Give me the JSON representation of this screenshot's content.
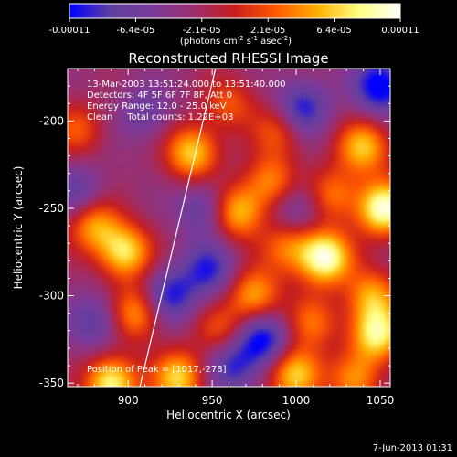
{
  "colorbar": {
    "ticks": [
      "-0.00011",
      "-6.4e-05",
      "-2.1e-05",
      "2.1e-05",
      "6.4e-05",
      "0.00011"
    ],
    "unit_label_parts": [
      "(photons cm",
      "-2",
      " s",
      "-1",
      " asec",
      "-2",
      ")"
    ]
  },
  "chart_data": {
    "type": "heatmap",
    "title": "Reconstructed RHESSI Image",
    "xlabel": "Heliocentric X (arcsec)",
    "ylabel": "Heliocentric Y (arcsec)",
    "xlim": [
      864,
      1056
    ],
    "ylim": [
      -352,
      -170
    ],
    "xticks": [
      900,
      950,
      1000,
      1050
    ],
    "yticks": [
      -200,
      -250,
      -300,
      -350
    ],
    "annotations": [
      "13-Mar-2003 13:51:24.000 to 13:51:40.000",
      "Detectors: 4F 5F 6F 7F 8F, Att 0",
      "Energy Range: 12.0 - 25.0 keV",
      "Clean     Total counts: 1.22E+03"
    ],
    "peak_label": "Position of Peak = [1017,-278]",
    "peak": [
      1017,
      -278
    ],
    "limb_line": [
      [
        907,
        -352
      ],
      [
        952,
        -170
      ]
    ],
    "colormap": [
      "#0000ff",
      "#5f3fa0",
      "#7a3a9a",
      "#9b2f6e",
      "#c81e1e",
      "#ff5a00",
      "#ffb000",
      "#ffff80",
      "#ffffff"
    ],
    "intensity_blobs": [
      {
        "x": 1017,
        "y": -278,
        "value": 1.0
      },
      {
        "x": 1052,
        "y": -250,
        "value": 1.0
      },
      {
        "x": 1040,
        "y": -215,
        "value": 0.7
      },
      {
        "x": 1048,
        "y": -322,
        "value": 0.85
      },
      {
        "x": 1045,
        "y": -300,
        "value": 0.6
      },
      {
        "x": 938,
        "y": -218,
        "value": 0.75
      },
      {
        "x": 965,
        "y": -252,
        "value": 0.7
      },
      {
        "x": 898,
        "y": -275,
        "value": 0.8
      },
      {
        "x": 880,
        "y": -260,
        "value": 0.6
      },
      {
        "x": 905,
        "y": -310,
        "value": 0.6
      },
      {
        "x": 975,
        "y": -300,
        "value": 0.65
      },
      {
        "x": 995,
        "y": -272,
        "value": 0.5
      },
      {
        "x": 985,
        "y": -235,
        "value": 0.55
      },
      {
        "x": 990,
        "y": -205,
        "value": 0.45
      },
      {
        "x": 960,
        "y": -190,
        "value": 0.4
      },
      {
        "x": 890,
        "y": -350,
        "value": 0.9
      },
      {
        "x": 930,
        "y": -347,
        "value": 0.75
      },
      {
        "x": 1000,
        "y": -345,
        "value": 0.8
      },
      {
        "x": 1035,
        "y": -348,
        "value": 0.5
      },
      {
        "x": 955,
        "y": -320,
        "value": 0.4
      },
      {
        "x": 870,
        "y": -205,
        "value": 0.4
      },
      {
        "x": 1010,
        "y": -315,
        "value": 0.45
      },
      {
        "x": 1022,
        "y": -242,
        "value": 0.5
      },
      {
        "x": 1003,
        "y": -193,
        "value": -0.6
      },
      {
        "x": 1050,
        "y": -180,
        "value": -0.7
      },
      {
        "x": 880,
        "y": -315,
        "value": -0.4
      },
      {
        "x": 925,
        "y": -300,
        "value": -0.55
      },
      {
        "x": 948,
        "y": -285,
        "value": -0.5
      },
      {
        "x": 980,
        "y": -325,
        "value": -0.65
      },
      {
        "x": 962,
        "y": -340,
        "value": -0.5
      },
      {
        "x": 945,
        "y": -250,
        "value": -0.4
      },
      {
        "x": 1000,
        "y": -250,
        "value": -0.35
      },
      {
        "x": 870,
        "y": -240,
        "value": -0.35
      },
      {
        "x": 910,
        "y": -195,
        "value": -0.3
      }
    ]
  },
  "footer": {
    "timestamp": "7-Jun-2013 01:31"
  }
}
